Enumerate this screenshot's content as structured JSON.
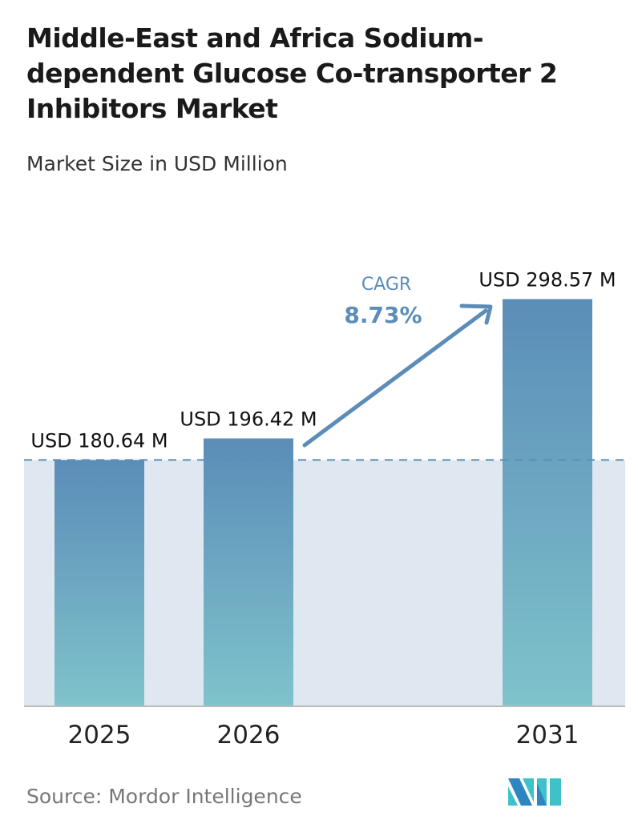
{
  "title": "Middle-East and Africa Sodium-dependent Glucose Co-transporter 2 Inhibitors Market",
  "subtitle": "Market Size in USD Million",
  "source": "Source:  Mordor Intelligence",
  "logo_text": "Mordor Intelligence",
  "colors": {
    "bar_top": "#5b8db8",
    "bar_bottom": "#7fc3cb",
    "shade": "#dfe8f1",
    "cagr": "#5b8db8"
  },
  "chart_data": {
    "type": "bar",
    "categories": [
      "2025",
      "2026",
      "2031"
    ],
    "values": [
      180.64,
      196.42,
      298.57
    ],
    "data_labels": [
      "USD 180.64 M",
      "USD 196.42 M",
      "USD 298.57 M"
    ],
    "title": "Middle-East and Africa Sodium-dependent Glucose Co-transporter 2 Inhibitors Market",
    "ylabel": "Market Size in USD Million",
    "ylim": [
      0,
      310
    ],
    "grid": false,
    "annotation": {
      "label": "CAGR",
      "value": "8.73%"
    }
  }
}
